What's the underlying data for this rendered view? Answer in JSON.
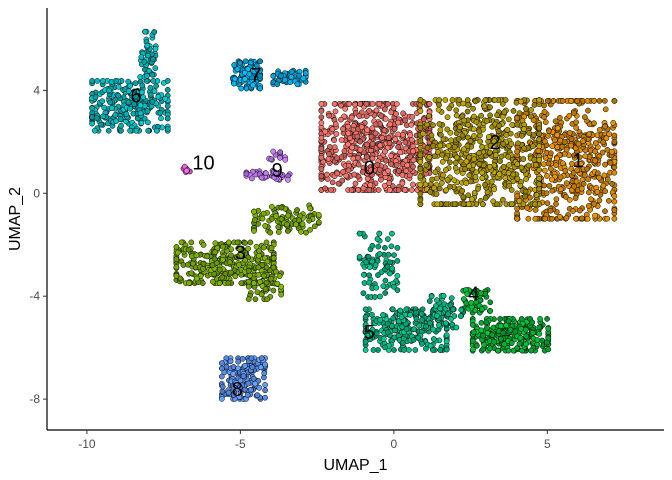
{
  "chart_data": {
    "type": "scatter",
    "title": "",
    "xlabel": "UMAP_1",
    "ylabel": "UMAP_2",
    "xlim": [
      -11.3,
      8.8
    ],
    "ylim": [
      -9.2,
      7.2
    ],
    "x_ticks": [
      -10,
      -5,
      0,
      5
    ],
    "x_tick_labels": [
      "-10",
      "-5",
      "0",
      "5"
    ],
    "y_ticks": [
      -8,
      -4,
      0,
      4
    ],
    "y_tick_labels": [
      "-8",
      "-4",
      "0",
      "4"
    ],
    "grid": false,
    "legend": "none",
    "point_outline_color": "#000000",
    "clusters": [
      {
        "label": "0",
        "color": "#F8766D",
        "label_pos": [
          -0.8,
          1.0
        ],
        "regions": [
          {
            "cx": -0.6,
            "cy": 1.8,
            "rx": 2.0,
            "ry": 1.9,
            "n": 650
          }
        ]
      },
      {
        "label": "1",
        "color": "#DE8C00",
        "label_pos": [
          6.0,
          1.3
        ],
        "regions": [
          {
            "cx": 5.6,
            "cy": 1.3,
            "rx": 1.8,
            "ry": 2.6,
            "n": 520
          }
        ]
      },
      {
        "label": "2",
        "color": "#B79F00",
        "label_pos": [
          3.3,
          2.0
        ],
        "regions": [
          {
            "cx": 2.8,
            "cy": 1.6,
            "rx": 2.2,
            "ry": 2.3,
            "n": 620
          }
        ]
      },
      {
        "label": "3",
        "color": "#7CAE00",
        "label_pos": [
          -5.0,
          -2.3
        ],
        "regions": [
          {
            "cx": -5.5,
            "cy": -2.7,
            "rx": 1.8,
            "ry": 0.9,
            "n": 300
          },
          {
            "cx": -3.5,
            "cy": -1.0,
            "rx": 1.2,
            "ry": 0.6,
            "n": 90
          },
          {
            "cx": -4.2,
            "cy": -3.5,
            "rx": 0.6,
            "ry": 0.7,
            "n": 60
          }
        ]
      },
      {
        "label": "4",
        "color": "#00BA38",
        "label_pos": [
          2.6,
          -3.9
        ],
        "regions": [
          {
            "cx": 3.8,
            "cy": -5.5,
            "rx": 1.4,
            "ry": 0.7,
            "n": 260
          },
          {
            "cx": 2.7,
            "cy": -4.2,
            "rx": 0.5,
            "ry": 0.5,
            "n": 50
          }
        ]
      },
      {
        "label": "5",
        "color": "#00C08B",
        "label_pos": [
          -0.8,
          -5.4
        ],
        "regions": [
          {
            "cx": 0.4,
            "cy": -5.3,
            "rx": 1.5,
            "ry": 0.9,
            "n": 240
          },
          {
            "cx": -0.5,
            "cy": -2.8,
            "rx": 0.7,
            "ry": 1.4,
            "n": 80
          },
          {
            "cx": 1.7,
            "cy": -4.6,
            "rx": 0.6,
            "ry": 0.7,
            "n": 50
          }
        ]
      },
      {
        "label": "6",
        "color": "#00BFC4",
        "label_pos": [
          -8.4,
          3.8
        ],
        "regions": [
          {
            "cx": -8.6,
            "cy": 3.4,
            "rx": 1.4,
            "ry": 1.1,
            "n": 260
          },
          {
            "cx": -8.0,
            "cy": 5.4,
            "rx": 0.3,
            "ry": 1.0,
            "n": 50
          }
        ]
      },
      {
        "label": "7",
        "color": "#00B4F0",
        "label_pos": [
          -4.5,
          4.6
        ],
        "regions": [
          {
            "cx": -4.8,
            "cy": 4.6,
            "rx": 0.5,
            "ry": 0.6,
            "n": 110
          },
          {
            "cx": -3.4,
            "cy": 4.5,
            "rx": 0.6,
            "ry": 0.3,
            "n": 50
          }
        ]
      },
      {
        "label": "8",
        "color": "#619CFF",
        "label_pos": [
          -5.1,
          -7.6
        ],
        "regions": [
          {
            "cx": -4.9,
            "cy": -7.2,
            "rx": 0.8,
            "ry": 0.9,
            "n": 160
          }
        ]
      },
      {
        "label": "9",
        "color": "#C77CFF",
        "label_pos": [
          -3.8,
          0.9
        ],
        "regions": [
          {
            "cx": -4.1,
            "cy": 0.7,
            "rx": 0.8,
            "ry": 0.2,
            "n": 40
          },
          {
            "cx": -3.8,
            "cy": 1.5,
            "rx": 0.3,
            "ry": 0.3,
            "n": 10
          }
        ]
      },
      {
        "label": "10",
        "color": "#F564E3",
        "label_pos": [
          -6.2,
          1.2
        ],
        "regions": [
          {
            "cx": -6.8,
            "cy": 0.9,
            "rx": 0.2,
            "ry": 0.15,
            "n": 8
          }
        ]
      }
    ]
  }
}
